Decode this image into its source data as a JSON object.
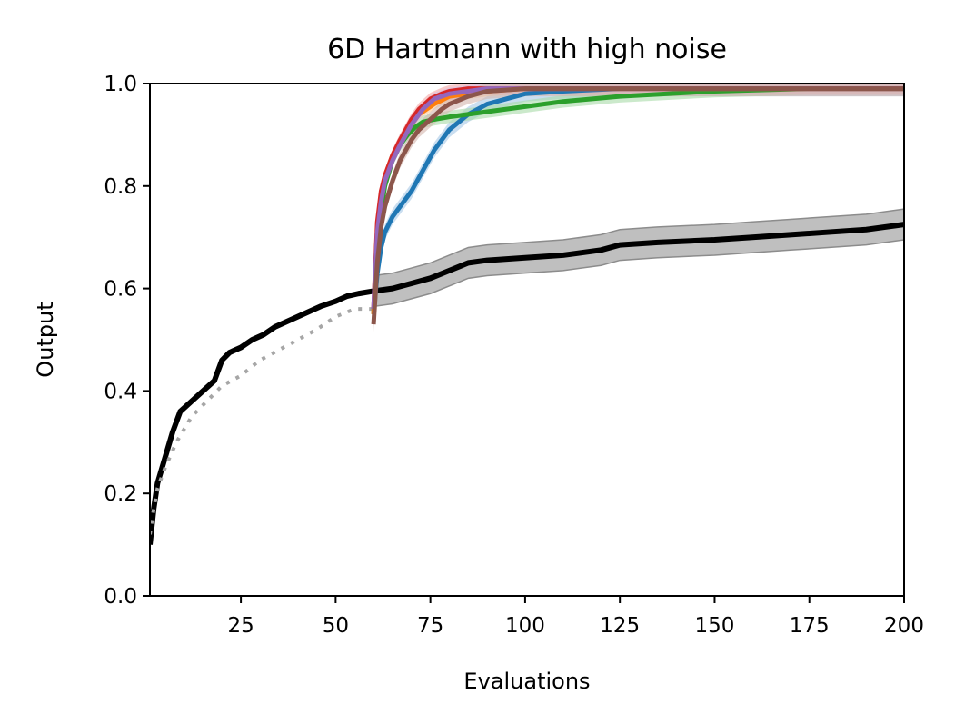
{
  "chart_data": {
    "type": "line",
    "title": "6D Hartmann with high noise",
    "xlabel": "Evaluations",
    "ylabel": "Output",
    "xlim": [
      1,
      200
    ],
    "ylim": [
      0.0,
      1.0
    ],
    "xticks": [
      25,
      50,
      75,
      100,
      125,
      150,
      175,
      200
    ],
    "xtick_labels": [
      "25",
      "50",
      "75",
      "100",
      "125",
      "150",
      "175",
      "200"
    ],
    "yticks": [
      0.0,
      0.2,
      0.4,
      0.6,
      0.8,
      1.0
    ],
    "ytick_labels": [
      "0.0",
      "0.2",
      "0.4",
      "0.6",
      "0.8",
      "1.0"
    ],
    "grid": false,
    "legend": "none",
    "series": [
      {
        "name": "black-baseline",
        "color": "#000000",
        "style": "solid",
        "band_color": "#bfbfbf",
        "band_halfwidth": 0.03,
        "band_from_x": 60,
        "x": [
          1,
          2,
          3,
          5,
          7,
          9,
          12,
          15,
          18,
          20,
          22,
          25,
          28,
          31,
          34,
          37,
          40,
          43,
          46,
          50,
          53,
          56,
          60,
          65,
          70,
          75,
          80,
          85,
          90,
          100,
          110,
          120,
          125,
          135,
          150,
          160,
          170,
          180,
          190,
          200
        ],
        "y": [
          0.1,
          0.17,
          0.22,
          0.27,
          0.32,
          0.36,
          0.38,
          0.4,
          0.42,
          0.46,
          0.475,
          0.485,
          0.5,
          0.51,
          0.525,
          0.535,
          0.545,
          0.555,
          0.565,
          0.575,
          0.585,
          0.59,
          0.595,
          0.6,
          0.61,
          0.62,
          0.635,
          0.65,
          0.655,
          0.66,
          0.665,
          0.675,
          0.685,
          0.69,
          0.695,
          0.7,
          0.705,
          0.71,
          0.715,
          0.725
        ]
      },
      {
        "name": "gray-dotted",
        "color": "#a6a6a6",
        "style": "dotted",
        "x": [
          1,
          2,
          3,
          5,
          8,
          12,
          16,
          20,
          25,
          30,
          35,
          40,
          45,
          50,
          55,
          60
        ],
        "y": [
          0.12,
          0.17,
          0.21,
          0.25,
          0.3,
          0.35,
          0.38,
          0.41,
          0.43,
          0.46,
          0.48,
          0.5,
          0.52,
          0.545,
          0.56,
          0.56
        ]
      },
      {
        "name": "blue",
        "color": "#1f77b4",
        "style": "solid",
        "band_color": "#a6c8e6",
        "band_halfwidth": 0.015,
        "x": [
          60,
          61,
          62,
          63,
          65,
          67,
          70,
          73,
          76,
          80,
          85,
          90,
          95,
          100,
          110,
          125,
          150,
          200
        ],
        "y": [
          0.55,
          0.63,
          0.68,
          0.71,
          0.74,
          0.76,
          0.79,
          0.83,
          0.87,
          0.91,
          0.94,
          0.96,
          0.97,
          0.98,
          0.985,
          0.99,
          0.99,
          0.99
        ]
      },
      {
        "name": "green",
        "color": "#2ca02c",
        "style": "solid",
        "band_color": "#a9dba9",
        "band_halfwidth": 0.012,
        "x": [
          60,
          61,
          62,
          63,
          65,
          67,
          69,
          71,
          73,
          76,
          80,
          90,
          100,
          110,
          125,
          150,
          175,
          200
        ],
        "y": [
          0.55,
          0.68,
          0.75,
          0.8,
          0.85,
          0.88,
          0.9,
          0.915,
          0.925,
          0.93,
          0.935,
          0.945,
          0.955,
          0.965,
          0.975,
          0.985,
          0.99,
          0.99
        ]
      },
      {
        "name": "orange",
        "color": "#ff7f0e",
        "style": "solid",
        "band_color": "#ffc995",
        "band_halfwidth": 0.01,
        "x": [
          60,
          61,
          62,
          63,
          65,
          68,
          72,
          76,
          80,
          90,
          100,
          125,
          150,
          200
        ],
        "y": [
          0.55,
          0.72,
          0.78,
          0.82,
          0.86,
          0.9,
          0.94,
          0.96,
          0.975,
          0.985,
          0.99,
          0.99,
          0.99,
          0.99
        ]
      },
      {
        "name": "red",
        "color": "#d62728",
        "style": "solid",
        "band_color": "#f1a6a6",
        "band_halfwidth": 0.012,
        "x": [
          60,
          61,
          62,
          63,
          65,
          67,
          70,
          72,
          75,
          78,
          80,
          85,
          90,
          100,
          125,
          150,
          200
        ],
        "y": [
          0.56,
          0.73,
          0.79,
          0.82,
          0.86,
          0.89,
          0.93,
          0.95,
          0.97,
          0.98,
          0.985,
          0.99,
          0.99,
          0.99,
          0.99,
          0.99,
          0.99
        ]
      },
      {
        "name": "purple",
        "color": "#9467bd",
        "style": "solid",
        "band_color": "#d3c0e6",
        "band_halfwidth": 0.012,
        "x": [
          60,
          61,
          62,
          63,
          65,
          67,
          70,
          73,
          76,
          80,
          85,
          90,
          100,
          125,
          150,
          200
        ],
        "y": [
          0.56,
          0.71,
          0.77,
          0.81,
          0.85,
          0.88,
          0.92,
          0.95,
          0.97,
          0.98,
          0.985,
          0.99,
          0.99,
          0.99,
          0.99,
          0.99
        ]
      },
      {
        "name": "brown",
        "color": "#8c564b",
        "style": "solid",
        "band_color": "#d4b5ae",
        "band_halfwidth": 0.015,
        "x": [
          60,
          61,
          62,
          63,
          65,
          67,
          70,
          72,
          75,
          78,
          80,
          85,
          90,
          100,
          125,
          150,
          200
        ],
        "y": [
          0.53,
          0.65,
          0.72,
          0.76,
          0.81,
          0.85,
          0.89,
          0.91,
          0.93,
          0.95,
          0.96,
          0.975,
          0.985,
          0.99,
          0.99,
          0.99,
          0.99
        ]
      }
    ]
  }
}
